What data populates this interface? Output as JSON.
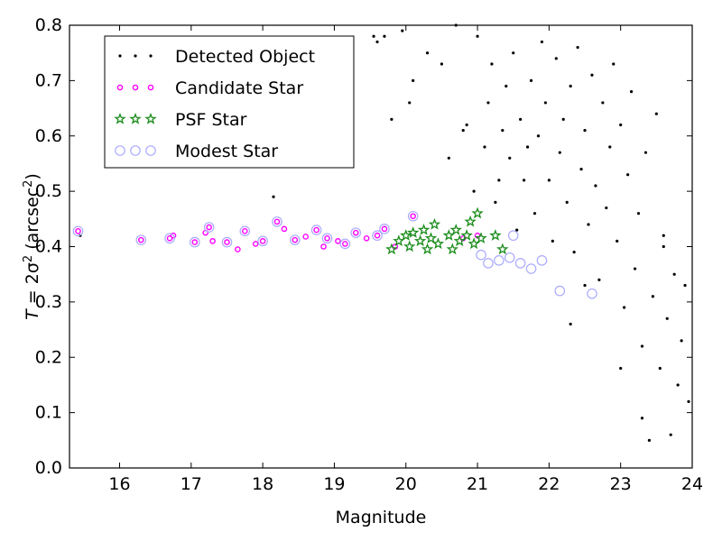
{
  "chart_data": {
    "type": "scatter",
    "xlabel": "Magnitude",
    "ylabel": "T = 2σ² (arcsec²)",
    "ylabel_parts": {
      "prefix": "T",
      "eq": " = 2σ",
      "sup1": "2",
      "unit": " (arcsec",
      "sup2": "2",
      "close": ")"
    },
    "xlim": [
      15.3,
      24
    ],
    "ylim": [
      0.0,
      0.8
    ],
    "x_ticks": [
      16,
      17,
      18,
      19,
      20,
      21,
      22,
      23,
      24
    ],
    "y_ticks": [
      0.0,
      0.1,
      0.2,
      0.3,
      0.4,
      0.5,
      0.6,
      0.7,
      0.8
    ],
    "x_tick_labels": [
      "16",
      "17",
      "18",
      "19",
      "20",
      "21",
      "22",
      "23",
      "24"
    ],
    "y_tick_labels": [
      "0.0",
      "0.1",
      "0.2",
      "0.3",
      "0.4",
      "0.5",
      "0.6",
      "0.7",
      "0.8"
    ],
    "grid": false,
    "legend_position": "top-left",
    "series": [
      {
        "name": "Detected Object",
        "marker": "dot",
        "color": "#000000",
        "points": [
          [
            15.45,
            0.42
          ],
          [
            18.15,
            0.49
          ],
          [
            19.55,
            0.78
          ],
          [
            19.6,
            0.77
          ],
          [
            19.7,
            0.78
          ],
          [
            19.8,
            0.63
          ],
          [
            19.95,
            0.79
          ],
          [
            20.05,
            0.66
          ],
          [
            20.1,
            0.7
          ],
          [
            20.3,
            0.75
          ],
          [
            20.5,
            0.73
          ],
          [
            20.6,
            0.56
          ],
          [
            20.7,
            0.8
          ],
          [
            20.8,
            0.61
          ],
          [
            20.85,
            0.62
          ],
          [
            20.95,
            0.5
          ],
          [
            21.0,
            0.78
          ],
          [
            21.1,
            0.58
          ],
          [
            21.15,
            0.66
          ],
          [
            21.2,
            0.73
          ],
          [
            21.25,
            0.48
          ],
          [
            21.3,
            0.52
          ],
          [
            21.35,
            0.61
          ],
          [
            21.4,
            0.69
          ],
          [
            21.45,
            0.56
          ],
          [
            21.5,
            0.75
          ],
          [
            21.55,
            0.43
          ],
          [
            21.6,
            0.63
          ],
          [
            21.65,
            0.52
          ],
          [
            21.7,
            0.58
          ],
          [
            21.75,
            0.7
          ],
          [
            21.8,
            0.46
          ],
          [
            21.85,
            0.6
          ],
          [
            21.9,
            0.77
          ],
          [
            21.95,
            0.66
          ],
          [
            22.0,
            0.52
          ],
          [
            22.05,
            0.41
          ],
          [
            22.1,
            0.74
          ],
          [
            22.15,
            0.57
          ],
          [
            22.2,
            0.63
          ],
          [
            22.25,
            0.48
          ],
          [
            22.3,
            0.69
          ],
          [
            22.35,
            0.39
          ],
          [
            22.4,
            0.76
          ],
          [
            22.45,
            0.54
          ],
          [
            22.5,
            0.61
          ],
          [
            22.55,
            0.44
          ],
          [
            22.6,
            0.71
          ],
          [
            22.65,
            0.51
          ],
          [
            22.7,
            0.34
          ],
          [
            22.75,
            0.66
          ],
          [
            22.8,
            0.47
          ],
          [
            22.85,
            0.58
          ],
          [
            22.9,
            0.73
          ],
          [
            22.95,
            0.41
          ],
          [
            23.0,
            0.62
          ],
          [
            23.05,
            0.29
          ],
          [
            23.1,
            0.53
          ],
          [
            23.15,
            0.68
          ],
          [
            23.2,
            0.36
          ],
          [
            23.25,
            0.46
          ],
          [
            23.3,
            0.22
          ],
          [
            23.35,
            0.57
          ],
          [
            23.4,
            0.05
          ],
          [
            23.45,
            0.31
          ],
          [
            23.5,
            0.64
          ],
          [
            23.55,
            0.18
          ],
          [
            23.6,
            0.42
          ],
          [
            23.65,
            0.27
          ],
          [
            23.7,
            0.06
          ],
          [
            23.75,
            0.35
          ],
          [
            23.8,
            0.15
          ],
          [
            23.85,
            0.23
          ],
          [
            23.9,
            0.33
          ],
          [
            23.95,
            0.12
          ],
          [
            22.3,
            0.26
          ],
          [
            22.5,
            0.33
          ],
          [
            23.0,
            0.18
          ],
          [
            23.3,
            0.09
          ],
          [
            23.6,
            0.4
          ]
        ]
      },
      {
        "name": "Candidate Star",
        "marker": "ring",
        "color": "#ff00ff",
        "points": [
          [
            15.42,
            0.428
          ],
          [
            16.3,
            0.412
          ],
          [
            16.7,
            0.415
          ],
          [
            16.75,
            0.42
          ],
          [
            17.05,
            0.408
          ],
          [
            17.2,
            0.425
          ],
          [
            17.25,
            0.435
          ],
          [
            17.3,
            0.41
          ],
          [
            17.5,
            0.408
          ],
          [
            17.65,
            0.395
          ],
          [
            17.75,
            0.428
          ],
          [
            17.9,
            0.405
          ],
          [
            18.0,
            0.41
          ],
          [
            18.2,
            0.445
          ],
          [
            18.3,
            0.432
          ],
          [
            18.45,
            0.412
          ],
          [
            18.6,
            0.418
          ],
          [
            18.75,
            0.43
          ],
          [
            18.85,
            0.4
          ],
          [
            18.9,
            0.415
          ],
          [
            19.05,
            0.41
          ],
          [
            19.15,
            0.405
          ],
          [
            19.3,
            0.425
          ],
          [
            19.45,
            0.415
          ],
          [
            19.6,
            0.42
          ],
          [
            19.7,
            0.432
          ],
          [
            19.85,
            0.4
          ],
          [
            20.1,
            0.455
          ],
          [
            20.8,
            0.415
          ],
          [
            21.0,
            0.42
          ]
        ]
      },
      {
        "name": "PSF Star",
        "marker": "star",
        "color": "#1a8c1a",
        "points": [
          [
            19.8,
            0.395
          ],
          [
            19.9,
            0.41
          ],
          [
            20.0,
            0.42
          ],
          [
            20.05,
            0.4
          ],
          [
            20.1,
            0.425
          ],
          [
            20.2,
            0.41
          ],
          [
            20.25,
            0.43
          ],
          [
            20.3,
            0.395
          ],
          [
            20.35,
            0.415
          ],
          [
            20.4,
            0.44
          ],
          [
            20.45,
            0.405
          ],
          [
            20.6,
            0.42
          ],
          [
            20.65,
            0.395
          ],
          [
            20.7,
            0.43
          ],
          [
            20.75,
            0.41
          ],
          [
            20.85,
            0.42
          ],
          [
            20.9,
            0.445
          ],
          [
            20.95,
            0.405
          ],
          [
            21.0,
            0.46
          ],
          [
            21.05,
            0.415
          ],
          [
            21.25,
            0.42
          ],
          [
            21.35,
            0.395
          ]
        ]
      },
      {
        "name": "Modest Star",
        "marker": "open-circle",
        "color": "#aaaaff",
        "points": [
          [
            15.42,
            0.428
          ],
          [
            16.3,
            0.412
          ],
          [
            16.7,
            0.415
          ],
          [
            17.05,
            0.408
          ],
          [
            17.25,
            0.435
          ],
          [
            17.5,
            0.408
          ],
          [
            17.75,
            0.428
          ],
          [
            18.0,
            0.41
          ],
          [
            18.2,
            0.445
          ],
          [
            18.45,
            0.412
          ],
          [
            18.75,
            0.43
          ],
          [
            18.9,
            0.415
          ],
          [
            19.15,
            0.405
          ],
          [
            19.3,
            0.425
          ],
          [
            19.6,
            0.42
          ],
          [
            19.7,
            0.432
          ],
          [
            20.1,
            0.455
          ],
          [
            21.05,
            0.385
          ],
          [
            21.15,
            0.37
          ],
          [
            21.3,
            0.375
          ],
          [
            21.45,
            0.38
          ],
          [
            21.5,
            0.42
          ],
          [
            21.6,
            0.37
          ],
          [
            21.75,
            0.36
          ],
          [
            21.9,
            0.375
          ],
          [
            22.15,
            0.32
          ],
          [
            22.6,
            0.315
          ]
        ]
      }
    ]
  }
}
